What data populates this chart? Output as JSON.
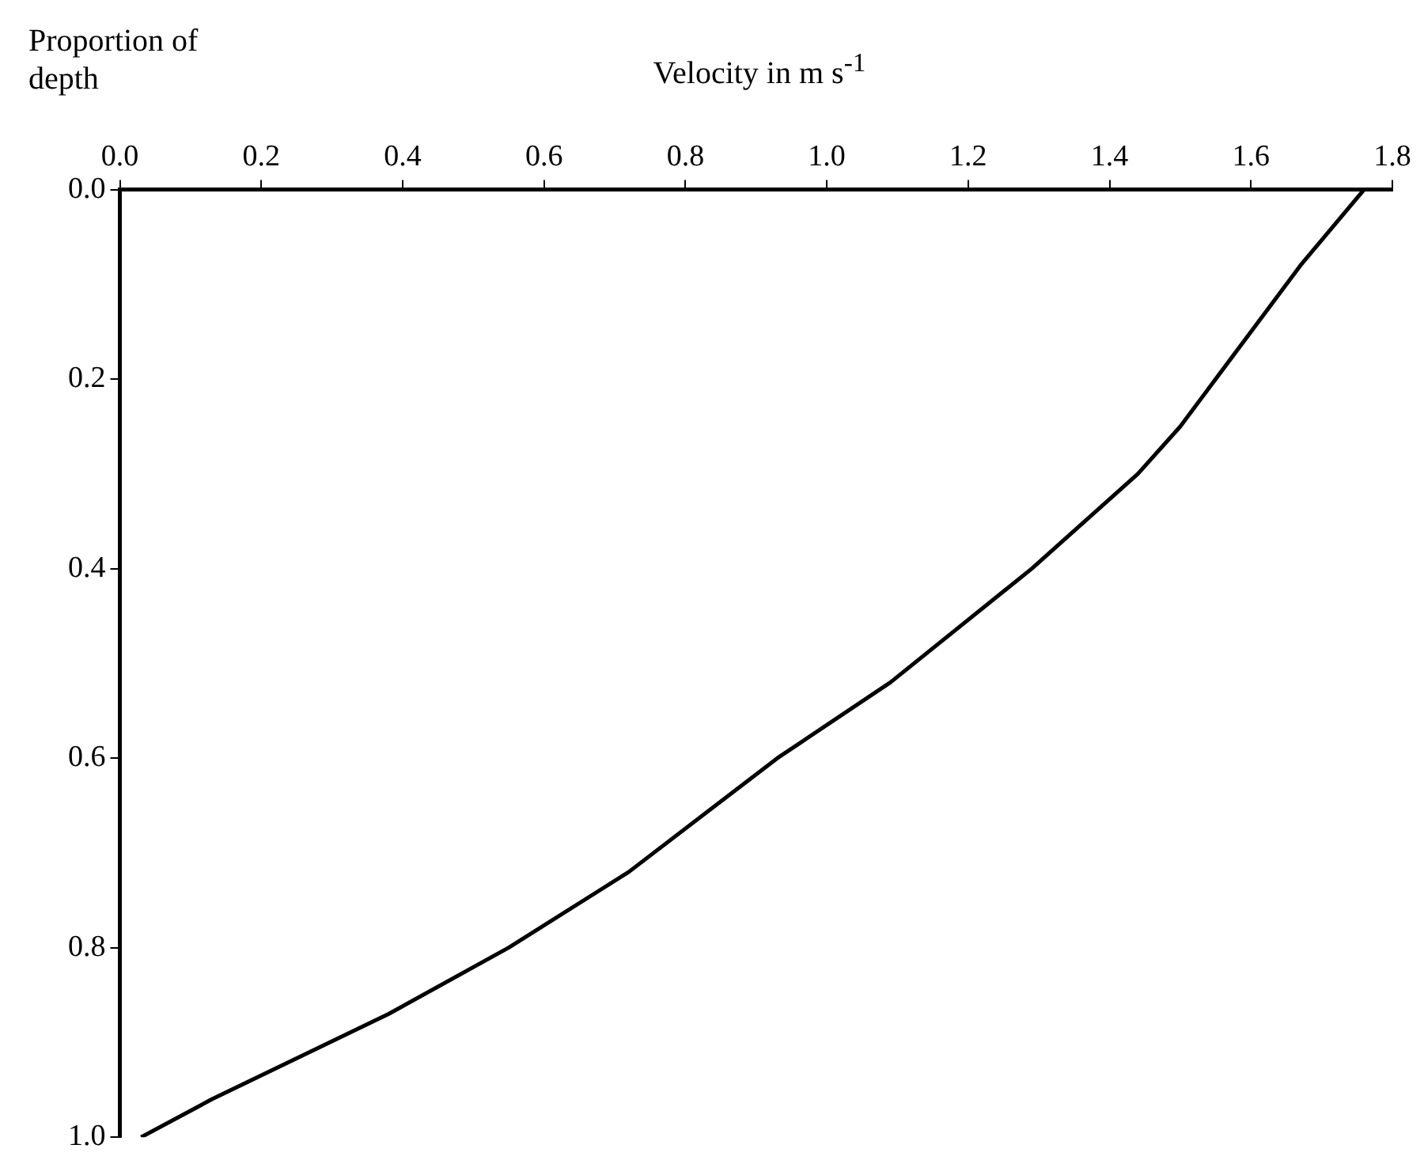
{
  "chart_data": {
    "type": "line",
    "xlabel": "Velocity in m s$^{-1}$",
    "ylabel": "Proportion of depth",
    "series": [
      {
        "color": "#000000",
        "x": [
          1.76,
          1.67,
          1.5,
          1.44,
          1.29,
          1.09,
          0.93,
          0.72,
          0.55,
          0.38,
          0.13,
          0.03
        ],
        "values": [
          0,
          0.08,
          0.25,
          0.3,
          0.4,
          0.52,
          0.6,
          0.72,
          0.8,
          0.87,
          0.96,
          1.0
        ]
      }
    ],
    "xlim": [
      0,
      1.8
    ],
    "xticks": [
      {
        "value": 0,
        "label": "0.0"
      },
      {
        "value": 0.2,
        "label": "0.2"
      },
      {
        "value": 0.4,
        "label": "0.4"
      },
      {
        "value": 0.6,
        "label": "0.6"
      },
      {
        "value": 0.8,
        "label": "0.8"
      },
      {
        "value": 1.0,
        "label": "1.0"
      },
      {
        "value": 1.2,
        "label": "1.2"
      },
      {
        "value": 1.4,
        "label": "1.4"
      },
      {
        "value": 1.6,
        "label": "1.6"
      },
      {
        "value": 1.8,
        "label": "1.8"
      }
    ],
    "ylim": [
      1,
      0
    ],
    "yticks": [
      {
        "value": 0,
        "label": "0.0"
      },
      {
        "value": 0.2,
        "label": "0.2"
      },
      {
        "value": 0.4,
        "label": "0.4"
      },
      {
        "value": 0.6,
        "label": "0.6"
      },
      {
        "value": 0.8,
        "label": "0.8"
      },
      {
        "value": 1.0,
        "label": "1.0"
      }
    ],
    "grid": false,
    "legend": false,
    "marker": "none",
    "line_style": "solid"
  }
}
